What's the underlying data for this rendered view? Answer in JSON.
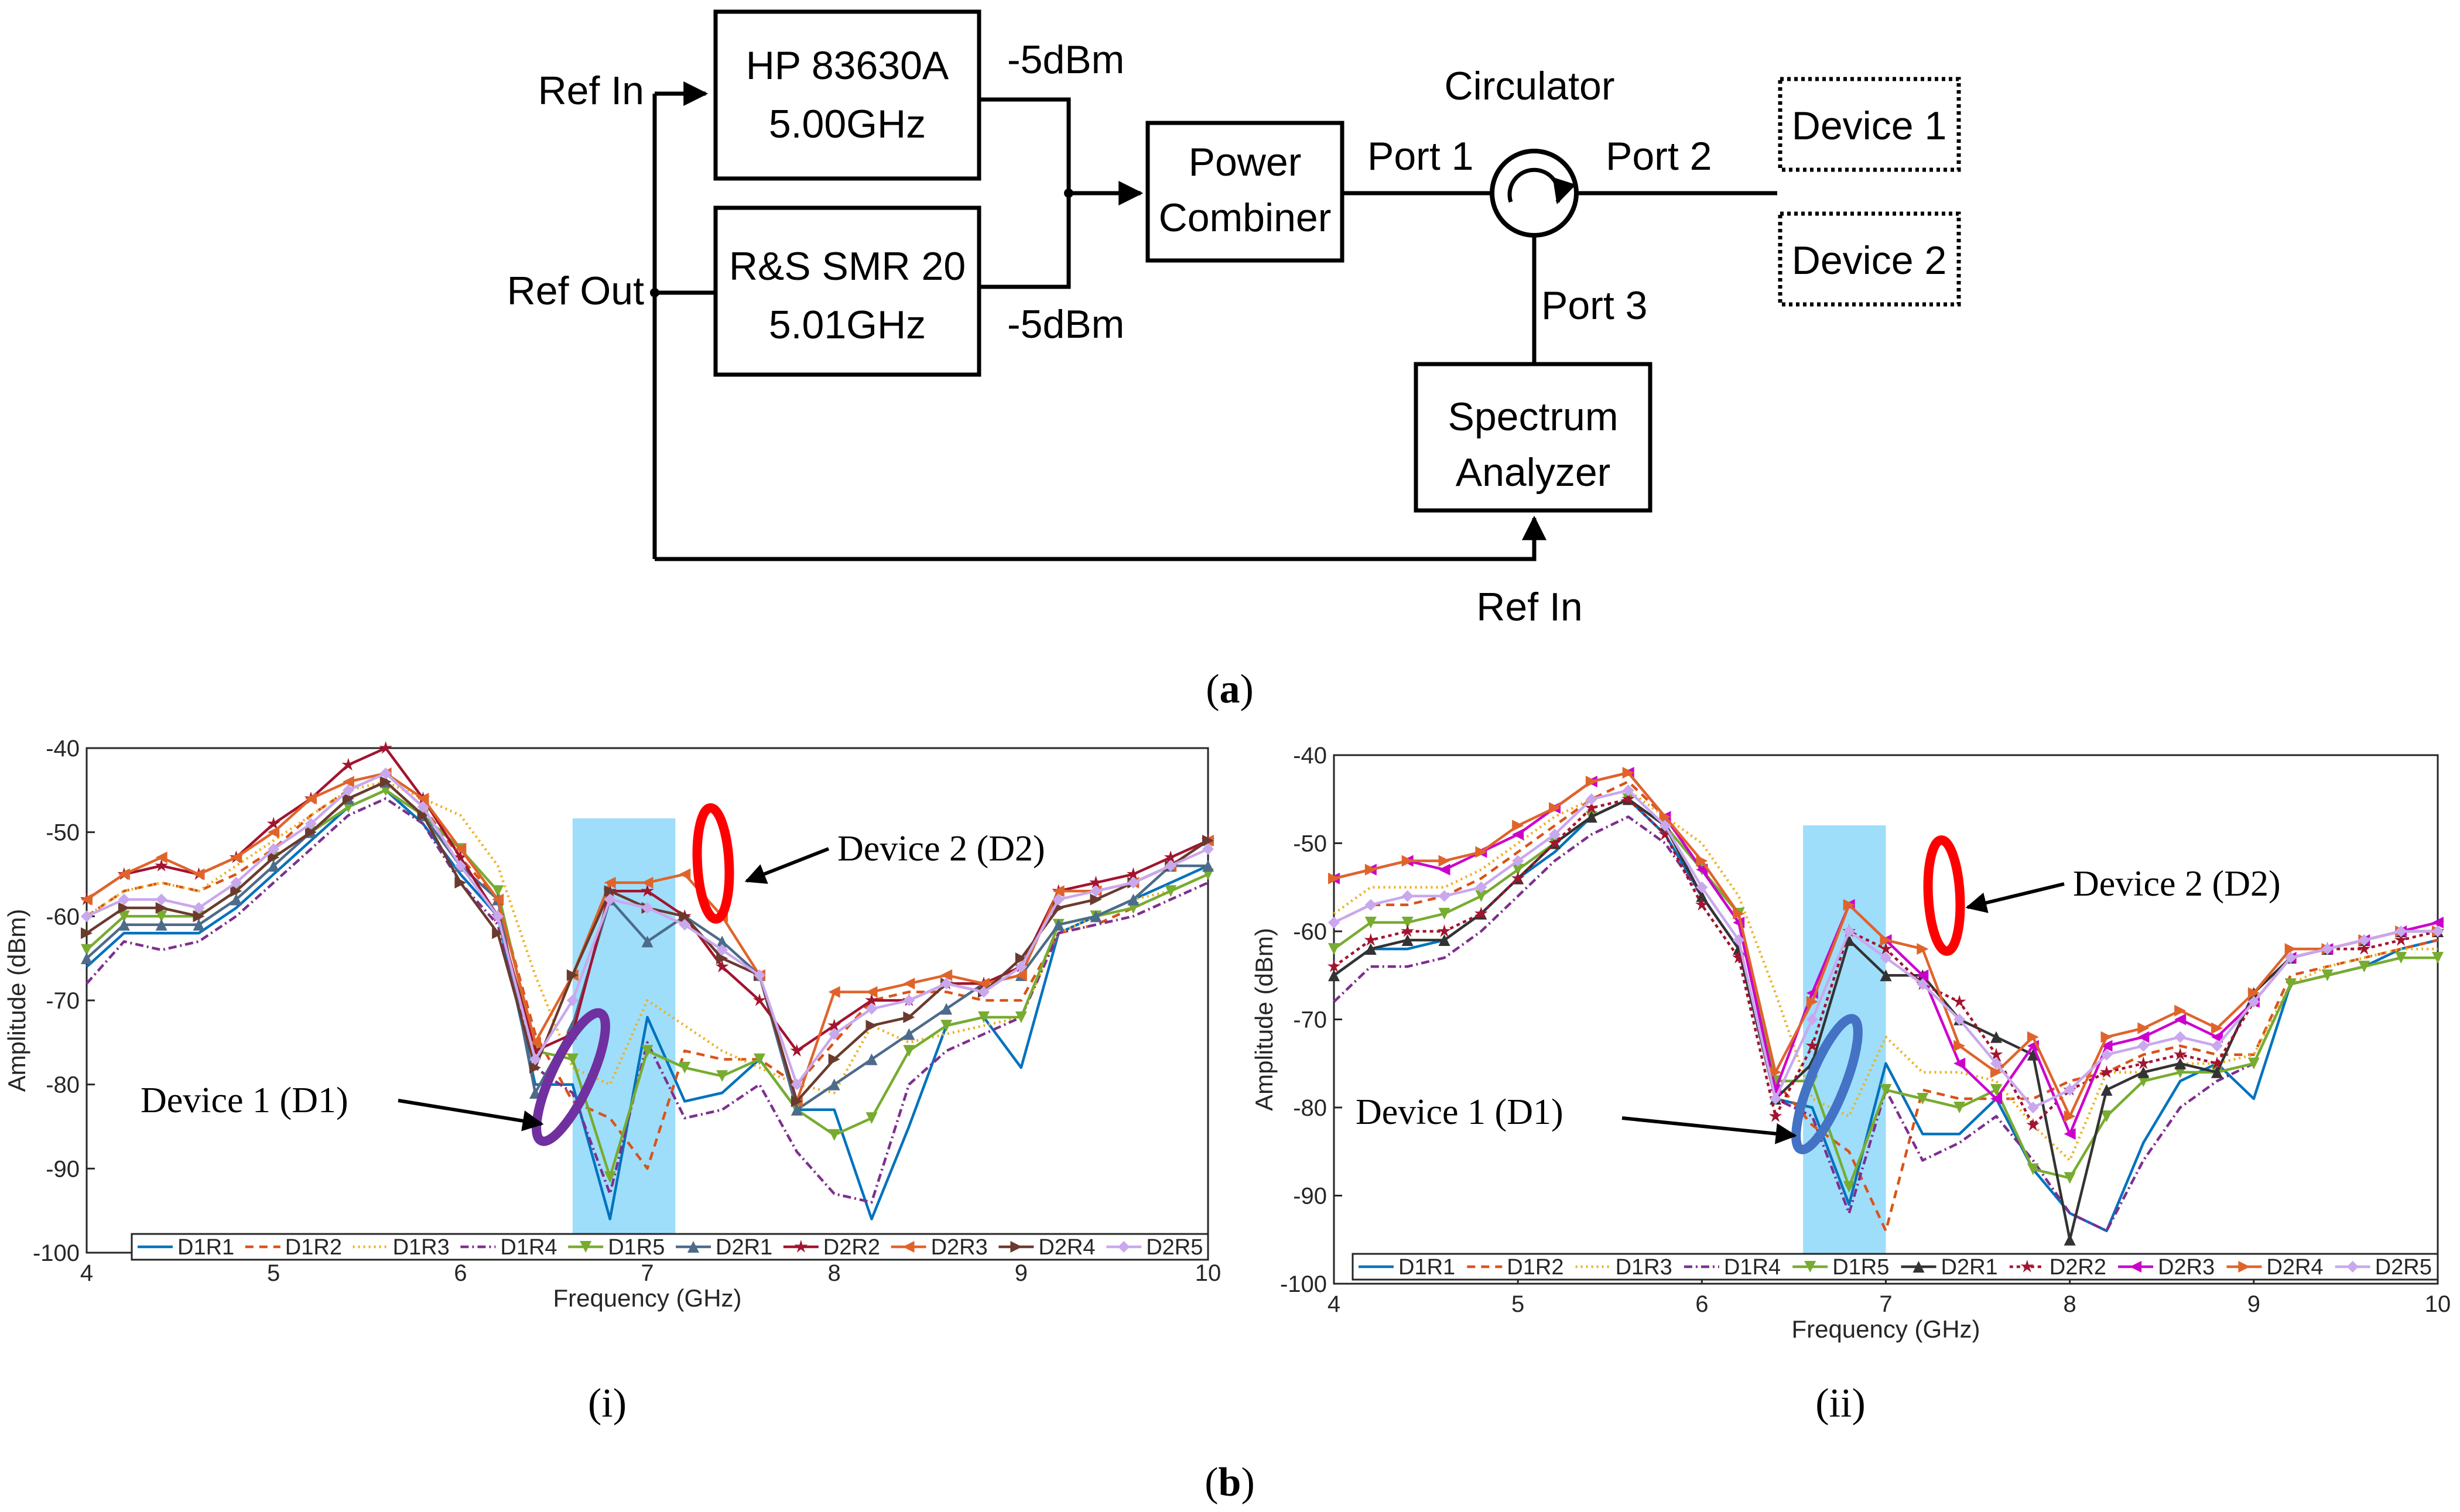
{
  "diagram": {
    "gen1_line1": "HP 83630A",
    "gen1_line2": "5.00GHz",
    "gen2_line1": "R&S SMR 20",
    "gen2_line2": "5.01GHz",
    "combiner_line1": "Power",
    "combiner_line2": "Combiner",
    "analyzer_line1": "Spectrum",
    "analyzer_line2": "Analyzer",
    "device1": "Device 1",
    "device2": "Device 2",
    "ref_in": "Ref In",
    "ref_out": "Ref Out",
    "ref_in_bottom": "Ref In",
    "power1": "-5dBm",
    "power2": "-5dBm",
    "circulator": "Circulator",
    "port1": "Port 1",
    "port2": "Port 2",
    "port3": "Port 3"
  },
  "captions": {
    "a_open": "(",
    "a": "a",
    "a_close": ")",
    "b_open": "(",
    "b": "b",
    "b_close": ")",
    "i": "(i)",
    "ii": "(ii)"
  },
  "chart_data": [
    {
      "type": "line",
      "panel": "(i)",
      "title": "",
      "xlabel": "Frequency (GHz)",
      "ylabel": "Amplitude (dBm)",
      "xlim": [
        4,
        10
      ],
      "ylim": [
        -100,
        -40
      ],
      "xticks": [
        4,
        5,
        6,
        7,
        8,
        9,
        10
      ],
      "yticks": [
        -40,
        -50,
        -60,
        -70,
        -80,
        -90,
        -100
      ],
      "legend_position": "bottom",
      "highlight_band": [
        6.6,
        7.15
      ],
      "annotations": [
        "Device 1 (D1)",
        "Device 2 (D2)"
      ],
      "x": [
        4.0,
        4.2,
        4.4,
        4.6,
        4.8,
        5.0,
        5.2,
        5.4,
        5.6,
        5.8,
        6.0,
        6.2,
        6.4,
        6.6,
        6.8,
        7.0,
        7.2,
        7.4,
        7.6,
        7.8,
        8.0,
        8.2,
        8.4,
        8.6,
        8.8,
        9.0,
        9.2,
        9.4,
        9.6,
        9.8,
        10.0
      ],
      "series": [
        {
          "name": "D1R1",
          "color": "#0072BD",
          "dash": "",
          "marker": "none",
          "values": [
            -66,
            -62,
            -62,
            -62,
            -59,
            -55,
            -51,
            -47,
            -45,
            -49,
            -55,
            -60,
            -80,
            -80,
            -96,
            -72,
            -82,
            -81,
            -77,
            -83,
            -83,
            -96,
            -85,
            -73,
            -72,
            -78,
            -62,
            -60,
            -58,
            -56,
            -54
          ]
        },
        {
          "name": "D1R2",
          "color": "#D95319",
          "dash": "14 10",
          "marker": "none",
          "values": [
            -60,
            -57,
            -56,
            -57,
            -55,
            -52,
            -48,
            -45,
            -43,
            -47,
            -53,
            -58,
            -74,
            -82,
            -84,
            -90,
            -76,
            -77,
            -77,
            -80,
            -75,
            -70,
            -69,
            -69,
            -70,
            -70,
            -62,
            -61,
            -59,
            -57,
            -55
          ]
        },
        {
          "name": "D1R3",
          "color": "#EDB120",
          "dash": "3 6",
          "marker": "none",
          "values": [
            -60,
            -57,
            -56,
            -57,
            -54,
            -51,
            -48,
            -45,
            -44,
            -46,
            -48,
            -54,
            -67,
            -78,
            -80,
            -70,
            -73,
            -76,
            -78,
            -80,
            -81,
            -73,
            -75,
            -74,
            -73,
            -72,
            -62,
            -60,
            -58,
            -57,
            -55
          ]
        },
        {
          "name": "D1R4",
          "color": "#7E2F8E",
          "dash": "14 6 3 6",
          "marker": "none",
          "values": [
            -68,
            -63,
            -64,
            -63,
            -60,
            -56,
            -52,
            -48,
            -46,
            -49,
            -56,
            -61,
            -78,
            -81,
            -93,
            -75,
            -84,
            -83,
            -80,
            -88,
            -93,
            -94,
            -80,
            -76,
            -74,
            -72,
            -62,
            -61,
            -60,
            -58,
            -56
          ]
        },
        {
          "name": "D1R5",
          "color": "#77AC30",
          "dash": "",
          "marker": "tri-down",
          "values": [
            -64,
            -60,
            -60,
            -60,
            -57,
            -53,
            -50,
            -47,
            -45,
            -48,
            -52,
            -57,
            -76,
            -77,
            -91,
            -76,
            -78,
            -79,
            -77,
            -83,
            -86,
            -84,
            -76,
            -73,
            -72,
            -72,
            -61,
            -60,
            -59,
            -57,
            -55
          ]
        },
        {
          "name": "D2R1",
          "color": "#4D6B8A",
          "dash": "",
          "marker": "tri-up",
          "values": [
            -65,
            -61,
            -61,
            -61,
            -58,
            -54,
            -50,
            -46,
            -44,
            -48,
            -54,
            -58,
            -81,
            -73,
            -58,
            -63,
            -60,
            -63,
            -67,
            -83,
            -80,
            -77,
            -74,
            -71,
            -68,
            -67,
            -61,
            -60,
            -58,
            -54,
            -54
          ]
        },
        {
          "name": "D2R2",
          "color": "#A2142F",
          "dash": "",
          "marker": "star",
          "values": [
            -58,
            -55,
            -54,
            -55,
            -53,
            -49,
            -46,
            -42,
            -40,
            -46,
            -53,
            -60,
            -76,
            -74,
            -57,
            -57,
            -60,
            -66,
            -70,
            -76,
            -73,
            -70,
            -70,
            -68,
            -68,
            -66,
            -57,
            -56,
            -55,
            -53,
            -51
          ]
        },
        {
          "name": "D2R3",
          "color": "#E0642A",
          "dash": "",
          "marker": "tri-left",
          "values": [
            -58,
            -55,
            -53,
            -55,
            -53,
            -50,
            -46,
            -44,
            -43,
            -46,
            -52,
            -58,
            -75,
            -67,
            -56,
            -56,
            -55,
            -60,
            -67,
            -82,
            -69,
            -69,
            -68,
            -67,
            -68,
            -67,
            -57,
            -57,
            -56,
            -54,
            -51
          ]
        },
        {
          "name": "D2R4",
          "color": "#6B3A2E",
          "dash": "",
          "marker": "tri-right",
          "values": [
            -62,
            -59,
            -59,
            -60,
            -57,
            -53,
            -50,
            -46,
            -44,
            -48,
            -56,
            -62,
            -78,
            -67,
            -57,
            -59,
            -60,
            -65,
            -67,
            -82,
            -77,
            -73,
            -72,
            -68,
            -69,
            -65,
            -59,
            -58,
            -56,
            -54,
            -51
          ]
        },
        {
          "name": "D2R5",
          "color": "#C9A8EE",
          "dash": "",
          "marker": "diamond",
          "values": [
            -60,
            -58,
            -58,
            -59,
            -56,
            -52,
            -49,
            -45,
            -43,
            -47,
            -54,
            -60,
            -77,
            -70,
            -58,
            -59,
            -61,
            -64,
            -67,
            -80,
            -74,
            -71,
            -70,
            -68,
            -69,
            -66,
            -58,
            -57,
            -56,
            -54,
            -52
          ]
        }
      ]
    },
    {
      "type": "line",
      "panel": "(ii)",
      "title": "",
      "xlabel": "Frequency (GHz)",
      "ylabel": "Amplitude (dBm)",
      "xlim": [
        4,
        10
      ],
      "ylim": [
        -100,
        -40
      ],
      "xticks": [
        4,
        5,
        6,
        7,
        8,
        9,
        10
      ],
      "yticks": [
        -40,
        -50,
        -60,
        -70,
        -80,
        -90,
        -100
      ],
      "legend_position": "bottom",
      "highlight_band": [
        6.55,
        7.0
      ],
      "annotations": [
        "Device 1 (D1)",
        "Device 2 (D2)"
      ],
      "x": [
        4.0,
        4.2,
        4.4,
        4.6,
        4.8,
        5.0,
        5.2,
        5.4,
        5.6,
        5.8,
        6.0,
        6.2,
        6.4,
        6.6,
        6.8,
        7.0,
        7.2,
        7.4,
        7.6,
        7.8,
        8.0,
        8.2,
        8.4,
        8.6,
        8.8,
        9.0,
        9.2,
        9.4,
        9.6,
        9.8,
        10.0
      ],
      "series": [
        {
          "name": "D1R1",
          "color": "#0072BD",
          "dash": "",
          "marker": "none",
          "values": [
            -65,
            -62,
            -62,
            -61,
            -58,
            -54,
            -51,
            -47,
            -45,
            -49,
            -56,
            -62,
            -79,
            -80,
            -91,
            -75,
            -83,
            -83,
            -79,
            -87,
            -92,
            -94,
            -84,
            -77,
            -75,
            -79,
            -66,
            -65,
            -64,
            -62,
            -61
          ]
        },
        {
          "name": "D1R2",
          "color": "#D95319",
          "dash": "14 10",
          "marker": "none",
          "values": [
            -59,
            -57,
            -57,
            -56,
            -54,
            -51,
            -48,
            -45,
            -43,
            -47,
            -53,
            -59,
            -77,
            -82,
            -85,
            -94,
            -78,
            -79,
            -79,
            -79,
            -77,
            -76,
            -74,
            -73,
            -74,
            -74,
            -65,
            -64,
            -63,
            -62,
            -61
          ]
        },
        {
          "name": "D1R3",
          "color": "#EDB120",
          "dash": "3 6",
          "marker": "none",
          "values": [
            -58,
            -55,
            -55,
            -55,
            -53,
            -50,
            -47,
            -45,
            -44,
            -47,
            -50,
            -56,
            -67,
            -79,
            -81,
            -72,
            -76,
            -76,
            -77,
            -82,
            -86,
            -76,
            -76,
            -75,
            -75,
            -74,
            -66,
            -64,
            -63,
            -62,
            -62
          ]
        },
        {
          "name": "D1R4",
          "color": "#7E2F8E",
          "dash": "14 6 3 6",
          "marker": "none",
          "values": [
            -68,
            -64,
            -64,
            -63,
            -60,
            -56,
            -52,
            -49,
            -47,
            -50,
            -56,
            -62,
            -79,
            -81,
            -92,
            -78,
            -86,
            -84,
            -81,
            -86,
            -92,
            -94,
            -86,
            -80,
            -77,
            -75,
            -66,
            -65,
            -64,
            -63,
            -63
          ]
        },
        {
          "name": "D1R5",
          "color": "#77AC30",
          "dash": "",
          "marker": "tri-down",
          "values": [
            -62,
            -59,
            -59,
            -58,
            -56,
            -53,
            -50,
            -47,
            -45,
            -48,
            -53,
            -58,
            -77,
            -77,
            -89,
            -78,
            -79,
            -80,
            -78,
            -87,
            -88,
            -81,
            -77,
            -76,
            -76,
            -75,
            -66,
            -65,
            -64,
            -63,
            -63
          ]
        },
        {
          "name": "D2R1",
          "color": "#333333",
          "dash": "",
          "marker": "tri-up",
          "values": [
            -65,
            -62,
            -61,
            -61,
            -58,
            -54,
            -50,
            -47,
            -45,
            -48,
            -56,
            -62,
            -79,
            -75,
            -61,
            -65,
            -65,
            -70,
            -72,
            -74,
            -95,
            -78,
            -76,
            -75,
            -76,
            -67,
            -63,
            -62,
            -61,
            -60,
            -60
          ]
        },
        {
          "name": "D2R2",
          "color": "#A2142F",
          "dash": "6 6",
          "marker": "star",
          "values": [
            -64,
            -61,
            -60,
            -60,
            -58,
            -54,
            -50,
            -46,
            -45,
            -49,
            -57,
            -63,
            -81,
            -73,
            -60,
            -62,
            -66,
            -68,
            -74,
            -82,
            -78,
            -76,
            -75,
            -74,
            -75,
            -68,
            -63,
            -62,
            -62,
            -61,
            -60
          ]
        },
        {
          "name": "D2R3",
          "color": "#CC00CC",
          "dash": "",
          "marker": "tri-left",
          "values": [
            -54,
            -53,
            -52,
            -53,
            -51,
            -49,
            -46,
            -43,
            -42,
            -47,
            -53,
            -59,
            -78,
            -67,
            -57,
            -61,
            -65,
            -75,
            -79,
            -73,
            -83,
            -73,
            -72,
            -70,
            -72,
            -68,
            -63,
            -62,
            -61,
            -60,
            -59
          ]
        },
        {
          "name": "D2R4",
          "color": "#E0642A",
          "dash": "",
          "marker": "tri-right",
          "values": [
            -54,
            -53,
            -52,
            -52,
            -51,
            -48,
            -46,
            -43,
            -42,
            -47,
            -52,
            -58,
            -76,
            -68,
            -57,
            -61,
            -62,
            -73,
            -76,
            -72,
            -81,
            -72,
            -71,
            -69,
            -71,
            -67,
            -62,
            -62,
            -61,
            -60,
            -60
          ]
        },
        {
          "name": "D2R5",
          "color": "#C9A8EE",
          "dash": "",
          "marker": "diamond",
          "values": [
            -59,
            -57,
            -56,
            -56,
            -55,
            -52,
            -49,
            -45,
            -44,
            -48,
            -55,
            -61,
            -79,
            -70,
            -60,
            -63,
            -66,
            -70,
            -75,
            -80,
            -78,
            -74,
            -73,
            -72,
            -73,
            -68,
            -63,
            -62,
            -61,
            -60,
            -60
          ]
        }
      ]
    }
  ]
}
